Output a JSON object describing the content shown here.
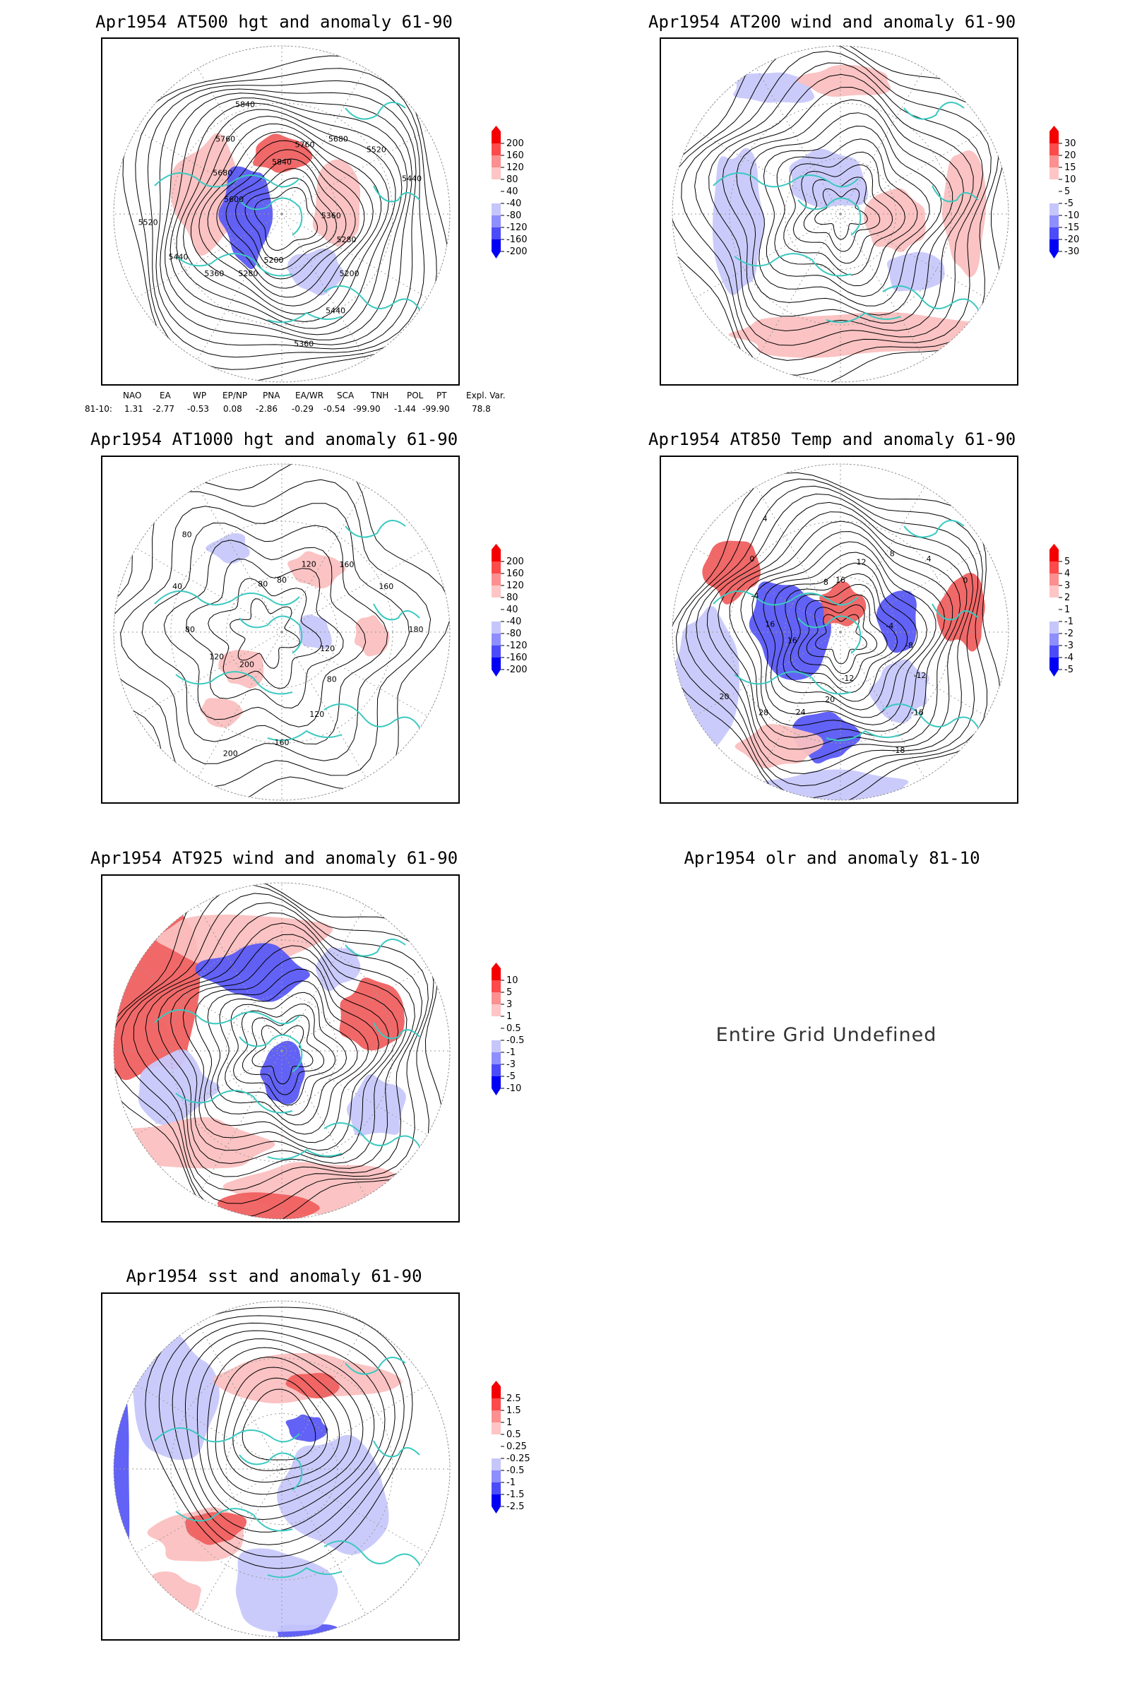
{
  "panels": [
    {
      "id": "p1",
      "title": "Apr1954 AT500 hgt and anomaly 61-90",
      "scale": [
        "200",
        "160",
        "120",
        "80",
        "40",
        "-40",
        "-80",
        "-120",
        "-160",
        "-200"
      ]
    },
    {
      "id": "p2",
      "title": "Apr1954 AT200 wind and anomaly 61-90",
      "scale": [
        "30",
        "20",
        "15",
        "10",
        "5",
        "-5",
        "-10",
        "-15",
        "-20",
        "-30"
      ]
    },
    {
      "id": "p3",
      "title": "Apr1954 AT1000 hgt and anomaly 61-90",
      "scale": [
        "200",
        "160",
        "120",
        "80",
        "40",
        "-40",
        "-80",
        "-120",
        "-160",
        "-200"
      ]
    },
    {
      "id": "p4",
      "title": "Apr1954 AT850 Temp and anomaly 61-90",
      "scale": [
        "5",
        "4",
        "3",
        "2",
        "1",
        "-1",
        "-2",
        "-3",
        "-4",
        "-5"
      ]
    },
    {
      "id": "p5",
      "title": "Apr1954 AT925 wind and anomaly 61-90",
      "scale": [
        "10",
        "5",
        "3",
        "1",
        "0.5",
        "-0.5",
        "-1",
        "-3",
        "-5",
        "-10"
      ]
    },
    {
      "id": "p6",
      "title": "Apr1954 olr and anomaly 81-10",
      "message": "Entire Grid Undefined"
    },
    {
      "id": "p7",
      "title": "Apr1954 sst and anomaly 61-90",
      "scale": [
        "2.5",
        "1.5",
        "1",
        "0.5",
        "0.25",
        "-0.25",
        "-0.5",
        "-1",
        "-1.5",
        "-2.5"
      ]
    }
  ],
  "contour_labels": {
    "p1": [
      "5840",
      "5760",
      "5680",
      "5520",
      "5440",
      "5360",
      "5280",
      "5200",
      "5440",
      "5360",
      "5200",
      "5280",
      "5360",
      "5440",
      "5520",
      "5600",
      "5680",
      "5760",
      "5840"
    ],
    "p3": [
      "80",
      "120",
      "160",
      "160",
      "180",
      "120",
      "80",
      "120",
      "160",
      "200",
      "200",
      "120",
      "80",
      "40",
      "80",
      "80"
    ],
    "p4": [
      "16",
      "12",
      "8",
      "4",
      "0",
      "-4",
      "-8",
      "-12",
      "-16",
      "-18",
      "-12",
      "20",
      "24",
      "28",
      "20",
      "16",
      "16",
      "-4",
      "0",
      "4",
      "8"
    ]
  },
  "indices": {
    "headers": [
      "NAO",
      "EA",
      "WP",
      "EP/NP",
      "PNA",
      "EA/WR",
      "SCA",
      "TNH",
      "POL",
      "PT",
      "Expl. Var."
    ],
    "row_label": "81-10:",
    "values": [
      "1.31",
      "-2.77",
      "-0.53",
      "0.08",
      "-2.86",
      "-0.29",
      "-0.54",
      "-99.90",
      "-1.44",
      "-99.90",
      "78.8"
    ]
  },
  "colors": {
    "coast": "#3bc9c0",
    "contour": "#000000",
    "grid": "#9a9a9a",
    "scale": [
      "#f40000",
      "#fd4a4a",
      "#fc8f8f",
      "#fdc5c5",
      "#ffffff",
      "#ffffff",
      "#c6c6fb",
      "#8e8efc",
      "#4b4bf9",
      "#0000f4"
    ],
    "fills": {
      "red": "#f06060",
      "pink": "#fbc0c0",
      "blue": "#5a5af5",
      "lightblue": "#c8c8fb"
    }
  }
}
